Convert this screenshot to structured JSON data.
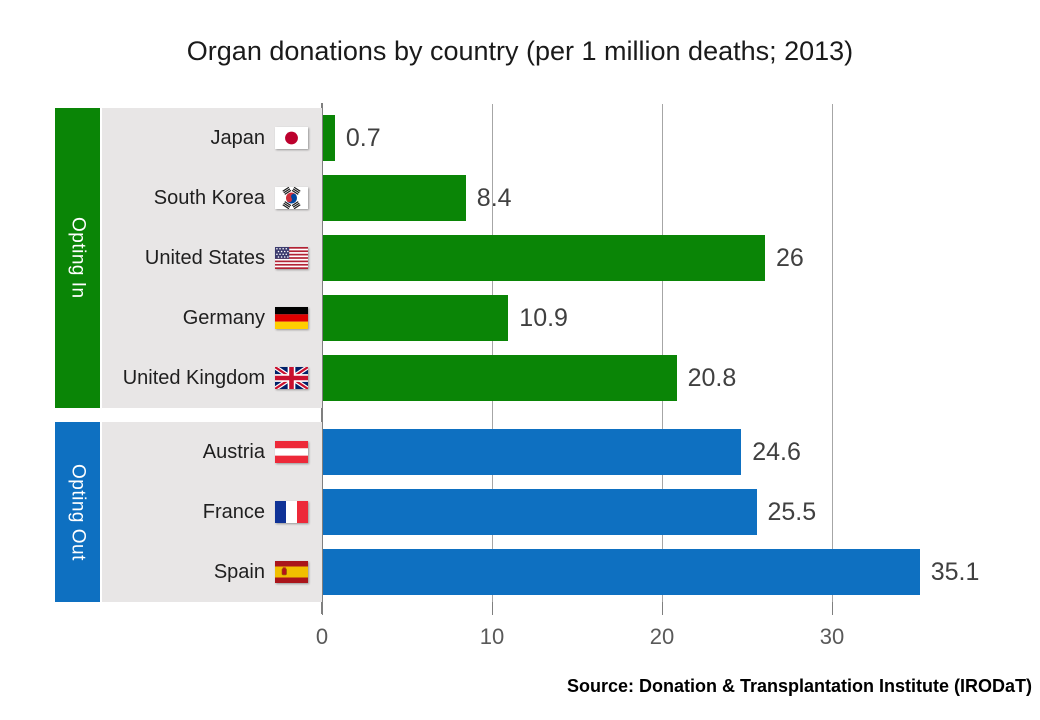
{
  "source": "Source: Donation & Transplantation Institute (IRODaT)",
  "chart_data": {
    "type": "bar",
    "orientation": "horizontal",
    "title": "Organ donations by country (per 1 million deaths; 2013)",
    "categories": [
      "Japan",
      "South Korea",
      "United States",
      "Germany",
      "United Kingdom",
      "Austria",
      "France",
      "Spain"
    ],
    "values": [
      0.7,
      8.4,
      26,
      10.9,
      20.8,
      24.6,
      25.5,
      35.1
    ],
    "groups": [
      {
        "label": "Opting In",
        "color": "#0A8506",
        "rows": [
          {
            "country": "Japan",
            "flag": "japan",
            "value": 0.7,
            "value_label": "0.7"
          },
          {
            "country": "South Korea",
            "flag": "south-korea",
            "value": 8.4,
            "value_label": "8.4"
          },
          {
            "country": "United States",
            "flag": "united-states",
            "value": 26,
            "value_label": "26"
          },
          {
            "country": "Germany",
            "flag": "germany",
            "value": 10.9,
            "value_label": "10.9"
          },
          {
            "country": "United Kingdom",
            "flag": "united-kingdom",
            "value": 20.8,
            "value_label": "20.8"
          }
        ]
      },
      {
        "label": "Opting Out",
        "color": "#0E70C1",
        "rows": [
          {
            "country": "Austria",
            "flag": "austria",
            "value": 24.6,
            "value_label": "24.6"
          },
          {
            "country": "France",
            "flag": "france",
            "value": 25.5,
            "value_label": "25.5"
          },
          {
            "country": "Spain",
            "flag": "spain",
            "value": 35.1,
            "value_label": "35.1"
          }
        ]
      }
    ],
    "xticks": [
      0,
      10,
      20,
      30
    ],
    "xlim": [
      0,
      40
    ],
    "grid": true,
    "value_labels": true,
    "legend": "none",
    "colors": {
      "opting_in": "#0A8506",
      "opting_out": "#0E70C1",
      "gridline": "#A6A6A6",
      "axis": "#7F7F7F",
      "label_background": "#E8E6E6",
      "value_text": "#404040",
      "tick_text": "#595959"
    }
  }
}
